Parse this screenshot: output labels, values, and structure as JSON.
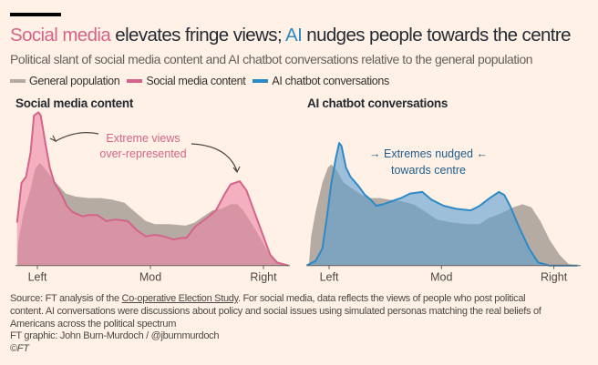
{
  "title": {
    "part1": "Social media",
    "part2": " elevates fringe views; ",
    "part3": "AI",
    "part4": " nudges people towards the centre"
  },
  "subtitle": "Political slant of social media content and AI chatbot conversations relative to the general population",
  "legend": [
    {
      "label": "General population",
      "color": "#b5aba3"
    },
    {
      "label": "Social media content",
      "color": "#d4648a"
    },
    {
      "label": "AI chatbot conversations",
      "color": "#2e8ac6"
    }
  ],
  "footer": {
    "source_prefix": "Source: FT analysis of the ",
    "source_link": "Co-operative Election Study",
    "line1_rest": ". For social media, data reflects the views of people who post political",
    "line2": "content. AI conversations were discussions about policy and social issues using simulated personas matching the real beliefs of",
    "line3": "Americans across the political spectrum",
    "credit": "FT graphic: John Burn-Murdoch / @jburnmurdoch",
    "copyright": "©FT"
  },
  "chart_data": [
    {
      "type": "area",
      "title": "Social media content",
      "xticks": [
        {
          "value": -1,
          "label": "Left"
        },
        {
          "value": 0,
          "label": "Mod"
        },
        {
          "value": 1,
          "label": "Right"
        }
      ],
      "annotation": {
        "line1": "Extreme views",
        "line2": "over-represented",
        "color": "#d4648a"
      },
      "series": [
        {
          "name": "General population",
          "color": "#b5aba3",
          "points": [
            [
              -1.18,
              0
            ],
            [
              -1.17,
              0.15
            ],
            [
              -1.12,
              0.35
            ],
            [
              -1.06,
              0.5
            ],
            [
              -1.02,
              0.63
            ],
            [
              -0.98,
              0.67
            ],
            [
              -0.93,
              0.63
            ],
            [
              -0.87,
              0.57
            ],
            [
              -0.81,
              0.52
            ],
            [
              -0.75,
              0.47
            ],
            [
              -0.66,
              0.45
            ],
            [
              -0.55,
              0.44
            ],
            [
              -0.44,
              0.44
            ],
            [
              -0.34,
              0.43
            ],
            [
              -0.23,
              0.41
            ],
            [
              -0.12,
              0.34
            ],
            [
              -0.04,
              0.29
            ],
            [
              0.04,
              0.27
            ],
            [
              0.17,
              0.27
            ],
            [
              0.31,
              0.26
            ],
            [
              0.39,
              0.28
            ],
            [
              0.47,
              0.32
            ],
            [
              0.55,
              0.36
            ],
            [
              0.63,
              0.37
            ],
            [
              0.71,
              0.4
            ],
            [
              0.77,
              0.4
            ],
            [
              0.82,
              0.36
            ],
            [
              0.9,
              0.27
            ],
            [
              0.98,
              0.17
            ],
            [
              1.06,
              0.06
            ],
            [
              1.12,
              0.02
            ],
            [
              1.22,
              0
            ]
          ]
        },
        {
          "name": "Social media content",
          "color": "#d4648a",
          "points": [
            [
              -1.18,
              0.28
            ],
            [
              -1.14,
              0.54
            ],
            [
              -1.1,
              0.58
            ],
            [
              -1.06,
              0.74
            ],
            [
              -1.03,
              0.98
            ],
            [
              -0.99,
              1.0
            ],
            [
              -0.97,
              0.98
            ],
            [
              -0.93,
              0.8
            ],
            [
              -0.89,
              0.64
            ],
            [
              -0.85,
              0.54
            ],
            [
              -0.79,
              0.47
            ],
            [
              -0.74,
              0.39
            ],
            [
              -0.69,
              0.35
            ],
            [
              -0.6,
              0.32
            ],
            [
              -0.55,
              0.33
            ],
            [
              -0.47,
              0.33
            ],
            [
              -0.39,
              0.29
            ],
            [
              -0.31,
              0.3
            ],
            [
              -0.2,
              0.29
            ],
            [
              -0.12,
              0.23
            ],
            [
              -0.04,
              0.19
            ],
            [
              0.04,
              0.2
            ],
            [
              0.12,
              0.19
            ],
            [
              0.2,
              0.17
            ],
            [
              0.28,
              0.18
            ],
            [
              0.32,
              0.18
            ],
            [
              0.39,
              0.25
            ],
            [
              0.5,
              0.31
            ],
            [
              0.58,
              0.36
            ],
            [
              0.66,
              0.47
            ],
            [
              0.71,
              0.53
            ],
            [
              0.79,
              0.55
            ],
            [
              0.85,
              0.49
            ],
            [
              0.93,
              0.33
            ],
            [
              1.01,
              0.17
            ],
            [
              1.06,
              0.07
            ],
            [
              1.12,
              0.02
            ],
            [
              1.22,
              0
            ]
          ]
        }
      ]
    },
    {
      "type": "area",
      "title": "AI chatbot conversations",
      "xticks": [
        {
          "value": -1,
          "label": "Left"
        },
        {
          "value": 0,
          "label": "Mod"
        },
        {
          "value": 1,
          "label": "Right"
        }
      ],
      "annotation": {
        "line1": "Extremes nudged",
        "line2": "towards centre",
        "color": "#1f5c8c"
      },
      "series": [
        {
          "name": "General population",
          "color": "#b5aba3",
          "points": [
            [
              -1.18,
              0
            ],
            [
              -1.16,
              0.19
            ],
            [
              -1.12,
              0.35
            ],
            [
              -1.06,
              0.54
            ],
            [
              -1.01,
              0.64
            ],
            [
              -0.98,
              0.66
            ],
            [
              -0.93,
              0.62
            ],
            [
              -0.87,
              0.54
            ],
            [
              -0.79,
              0.5
            ],
            [
              -0.71,
              0.46
            ],
            [
              -0.63,
              0.44
            ],
            [
              -0.55,
              0.44
            ],
            [
              -0.47,
              0.43
            ],
            [
              -0.36,
              0.42
            ],
            [
              -0.25,
              0.4
            ],
            [
              -0.14,
              0.35
            ],
            [
              -0.04,
              0.3
            ],
            [
              0.1,
              0.28
            ],
            [
              0.24,
              0.27
            ],
            [
              0.34,
              0.27
            ],
            [
              0.42,
              0.31
            ],
            [
              0.53,
              0.34
            ],
            [
              0.64,
              0.38
            ],
            [
              0.72,
              0.4
            ],
            [
              0.8,
              0.38
            ],
            [
              0.88,
              0.29
            ],
            [
              0.96,
              0.17
            ],
            [
              1.05,
              0.07
            ],
            [
              1.13,
              0.01
            ],
            [
              1.21,
              0
            ]
          ]
        },
        {
          "name": "AI chatbot conversations",
          "color": "#2e8ac6",
          "points": [
            [
              -1.2,
              0
            ],
            [
              -1.12,
              0.03
            ],
            [
              -1.06,
              0.11
            ],
            [
              -1.02,
              0.31
            ],
            [
              -0.98,
              0.54
            ],
            [
              -0.94,
              0.7
            ],
            [
              -0.91,
              0.8
            ],
            [
              -0.89,
              0.78
            ],
            [
              -0.85,
              0.64
            ],
            [
              -0.81,
              0.58
            ],
            [
              -0.74,
              0.52
            ],
            [
              -0.68,
              0.46
            ],
            [
              -0.63,
              0.43
            ],
            [
              -0.58,
              0.39
            ],
            [
              -0.52,
              0.4
            ],
            [
              -0.44,
              0.42
            ],
            [
              -0.36,
              0.44
            ],
            [
              -0.28,
              0.47
            ],
            [
              -0.17,
              0.48
            ],
            [
              -0.09,
              0.43
            ],
            [
              0.02,
              0.39
            ],
            [
              0.13,
              0.37
            ],
            [
              0.26,
              0.36
            ],
            [
              0.34,
              0.39
            ],
            [
              0.43,
              0.44
            ],
            [
              0.51,
              0.48
            ],
            [
              0.56,
              0.46
            ],
            [
              0.61,
              0.39
            ],
            [
              0.69,
              0.25
            ],
            [
              0.78,
              0.11
            ],
            [
              0.86,
              0.02
            ],
            [
              0.96,
              0
            ],
            [
              1.21,
              0
            ]
          ]
        }
      ]
    }
  ]
}
